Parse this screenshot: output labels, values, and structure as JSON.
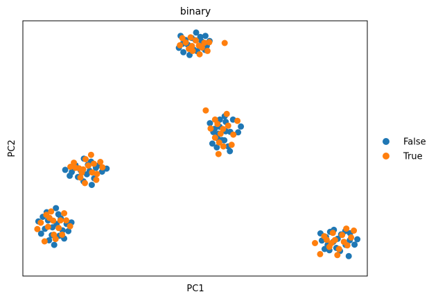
{
  "chart_data": {
    "type": "scatter",
    "title": "binary",
    "xlabel": "PC1",
    "ylabel": "PC2",
    "xlim": [
      0,
      100
    ],
    "ylim": [
      0,
      100
    ],
    "xticks": [],
    "yticks": [],
    "grid": false,
    "legend_position": "right",
    "series": [
      {
        "name": "False",
        "color": "#1f77b4",
        "points": [
          [
            47.9,
            90.6
          ],
          [
            49.0,
            93.3
          ],
          [
            51.9,
            91.9
          ],
          [
            50.3,
            95.4
          ],
          [
            46.6,
            87.7
          ],
          [
            53.4,
            90.2
          ],
          [
            54.2,
            92.1
          ],
          [
            45.8,
            94.1
          ],
          [
            50.6,
            88.1
          ],
          [
            51.5,
            93.7
          ],
          [
            47.2,
            92.5
          ],
          [
            49.6,
            88.7
          ],
          [
            52.9,
            88.6
          ],
          [
            46.4,
            91.0
          ],
          [
            48.4,
            86.6
          ],
          [
            50.1,
            92.4
          ],
          [
            53.0,
            94.1
          ],
          [
            45.3,
            89.4
          ],
          [
            55.7,
            57.7
          ],
          [
            57.1,
            58.5
          ],
          [
            58.9,
            60.4
          ],
          [
            56.8,
            55.8
          ],
          [
            60.2,
            56.5
          ],
          [
            58.5,
            53.2
          ],
          [
            56.3,
            50.4
          ],
          [
            59.6,
            50.8
          ],
          [
            62.5,
            56.3
          ],
          [
            57.2,
            61.3
          ],
          [
            54.3,
            59.9
          ],
          [
            61.0,
            61.3
          ],
          [
            58.9,
            56.7
          ],
          [
            56.5,
            54.0
          ],
          [
            60.1,
            48.9
          ],
          [
            55.3,
            56.4
          ],
          [
            63.3,
            58.6
          ],
          [
            57.8,
            53.3
          ],
          [
            58.6,
            62.6
          ],
          [
            55.0,
            51.9
          ],
          [
            16.8,
            41.4
          ],
          [
            18.9,
            43.6
          ],
          [
            20.7,
            38.3
          ],
          [
            22.1,
            43.4
          ],
          [
            14.2,
            40.8
          ],
          [
            17.6,
            37.1
          ],
          [
            19.8,
            44.8
          ],
          [
            23.0,
            40.9
          ],
          [
            12.3,
            41.6
          ],
          [
            18.6,
            39.9
          ],
          [
            21.2,
            42.4
          ],
          [
            16.0,
            38.8
          ],
          [
            20.0,
            35.7
          ],
          [
            15.3,
            43.4
          ],
          [
            24.3,
            42.1
          ],
          [
            13.6,
            39.3
          ],
          [
            17.7,
            46.0
          ],
          [
            19.4,
            41.2
          ],
          [
            7.3,
            21.8
          ],
          [
            9.8,
            20.4
          ],
          [
            11.5,
            17.9
          ],
          [
            5.8,
            23.2
          ],
          [
            8.4,
            16.0
          ],
          [
            12.7,
            20.4
          ],
          [
            6.4,
            18.5
          ],
          [
            10.3,
            24.2
          ],
          [
            4.5,
            21.4
          ],
          [
            9.1,
            12.2
          ],
          [
            13.2,
            17.6
          ],
          [
            7.6,
            14.0
          ],
          [
            11.0,
            22.6
          ],
          [
            5.3,
            16.6
          ],
          [
            9.6,
            26.6
          ],
          [
            12.0,
            14.7
          ],
          [
            6.9,
            25.0
          ],
          [
            8.6,
            19.1
          ],
          [
            14.1,
            21.0
          ],
          [
            10.6,
            15.8
          ],
          [
            88.0,
            15.3
          ],
          [
            90.1,
            13.4
          ],
          [
            92.4,
            16.3
          ],
          [
            94.9,
            14.0
          ],
          [
            86.8,
            13.9
          ],
          [
            91.0,
            11.0
          ],
          [
            93.6,
            17.6
          ],
          [
            89.2,
            17.3
          ],
          [
            96.3,
            12.3
          ],
          [
            87.6,
            10.6
          ],
          [
            92.1,
            9.8
          ],
          [
            90.3,
            18.1
          ],
          [
            95.0,
            16.8
          ],
          [
            89.0,
            10.1
          ],
          [
            93.7,
            12.2
          ],
          [
            97.1,
            14.4
          ],
          [
            91.4,
            14.6
          ],
          [
            88.5,
            12.2
          ],
          [
            94.6,
            7.8
          ],
          [
            86.4,
            16.7
          ]
        ]
      },
      {
        "name": "True",
        "color": "#ff7f0e",
        "points": [
          [
            49.1,
            90.1
          ],
          [
            51.1,
            90.3
          ],
          [
            47.3,
            91.5
          ],
          [
            52.7,
            91.4
          ],
          [
            48.2,
            89.0
          ],
          [
            50.2,
            92.3
          ],
          [
            53.6,
            88.2
          ],
          [
            46.3,
            93.2
          ],
          [
            58.6,
            91.3
          ],
          [
            52.0,
            89.5
          ],
          [
            48.7,
            93.5
          ],
          [
            45.6,
            90.4
          ],
          [
            51.3,
            86.9
          ],
          [
            49.3,
            88.2
          ],
          [
            54.1,
            91.6
          ],
          [
            53.1,
            64.9
          ],
          [
            56.5,
            59.6
          ],
          [
            59.6,
            58.9
          ],
          [
            61.1,
            55.4
          ],
          [
            57.0,
            52.3
          ],
          [
            54.5,
            57.8
          ],
          [
            59.2,
            63.5
          ],
          [
            58.2,
            50.8
          ],
          [
            62.3,
            60.8
          ],
          [
            55.8,
            61.3
          ],
          [
            57.4,
            55.8
          ],
          [
            60.6,
            51.4
          ],
          [
            55.8,
            54.2
          ],
          [
            58.1,
            57.6
          ],
          [
            56.8,
            47.8
          ],
          [
            16.3,
            42.2
          ],
          [
            18.2,
            45.8
          ],
          [
            20.1,
            40.6
          ],
          [
            14.8,
            44.4
          ],
          [
            22.5,
            44.7
          ],
          [
            17.1,
            40.5
          ],
          [
            21.3,
            37.7
          ],
          [
            19.8,
            47.5
          ],
          [
            15.3,
            42.4
          ],
          [
            23.1,
            42.6
          ],
          [
            16.7,
            38.6
          ],
          [
            20.6,
            44.0
          ],
          [
            18.0,
            36.4
          ],
          [
            13.8,
            42.8
          ],
          [
            21.5,
            40.0
          ],
          [
            19.0,
            43.3
          ],
          [
            17.5,
            41.8
          ],
          [
            8.8,
            21.7
          ],
          [
            10.4,
            18.8
          ],
          [
            7.3,
            19.3
          ],
          [
            12.0,
            24.6
          ],
          [
            5.2,
            20.9
          ],
          [
            9.5,
            14.5
          ],
          [
            13.7,
            19.5
          ],
          [
            6.3,
            13.6
          ],
          [
            10.9,
            21.8
          ],
          [
            8.2,
            25.3
          ],
          [
            11.4,
            16.2
          ],
          [
            4.2,
            18.4
          ],
          [
            7.7,
            22.8
          ],
          [
            12.6,
            21.8
          ],
          [
            9.0,
            16.2
          ],
          [
            6.8,
            24.0
          ],
          [
            90.6,
            14.1
          ],
          [
            93.2,
            13.4
          ],
          [
            87.5,
            15.6
          ],
          [
            91.8,
            10.6
          ],
          [
            95.3,
            15.1
          ],
          [
            89.0,
            11.4
          ],
          [
            92.7,
            16.1
          ],
          [
            84.8,
            12.9
          ],
          [
            96.1,
            17.8
          ],
          [
            86.3,
            8.6
          ],
          [
            90.0,
            16.9
          ],
          [
            94.2,
            12.0
          ],
          [
            88.2,
            14.2
          ],
          [
            91.3,
            8.2
          ],
          [
            93.9,
            18.6
          ],
          [
            89.6,
            12.9
          ]
        ]
      }
    ]
  }
}
